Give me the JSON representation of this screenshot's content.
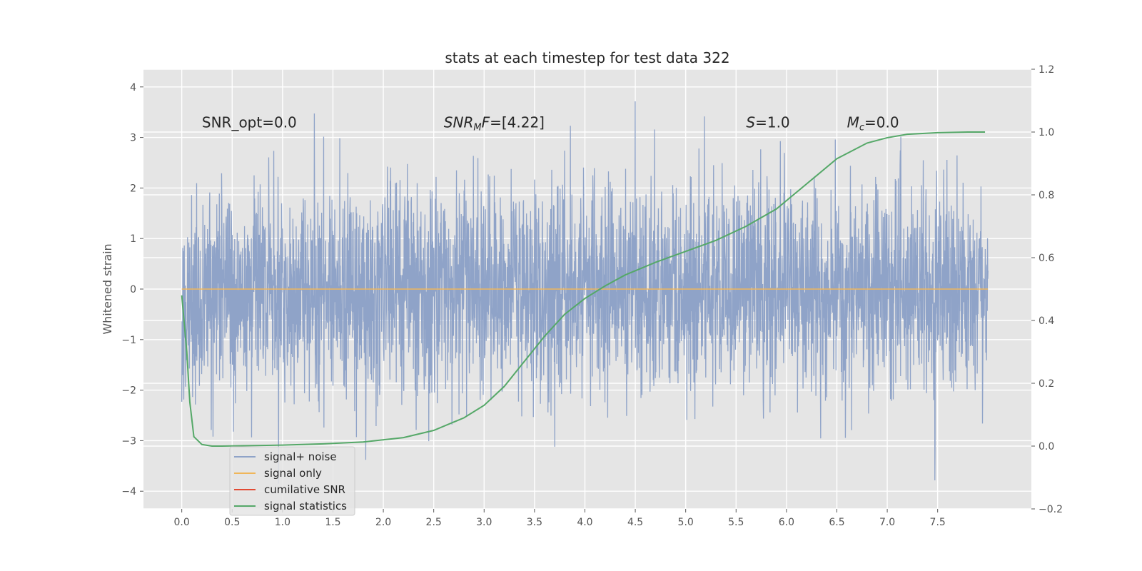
{
  "chart_data": {
    "type": "line",
    "title": "stats at each timestep for test data 322",
    "xlabel": "",
    "ylabel": "Whitened strain",
    "y2label": "",
    "xlim": [
      -0.38,
      8.43
    ],
    "ylim": [
      -4.35,
      4.35
    ],
    "y2lim": [
      -0.2,
      1.2
    ],
    "x_ticks": [
      0.0,
      0.5,
      1.0,
      1.5,
      2.0,
      2.5,
      3.0,
      3.5,
      4.0,
      4.5,
      5.0,
      5.5,
      6.0,
      6.5,
      7.0,
      7.5
    ],
    "x_tick_labels": [
      "0.0",
      "0.5",
      "1.0",
      "1.5",
      "2.0",
      "2.5",
      "3.0",
      "3.5",
      "4.0",
      "4.5",
      "5.0",
      "5.5",
      "6.0",
      "6.5",
      "7.0",
      "7.5"
    ],
    "y_ticks": [
      -4,
      -3,
      -2,
      -1,
      0,
      1,
      2,
      3,
      4
    ],
    "y_tick_labels": [
      "−4",
      "−3",
      "−2",
      "−1",
      "0",
      "1",
      "2",
      "3",
      "4"
    ],
    "y2_ticks": [
      -0.2,
      0.0,
      0.2,
      0.4,
      0.6,
      0.8,
      1.0,
      1.2
    ],
    "y2_tick_labels": [
      "−0.2",
      "0.0",
      "0.2",
      "0.4",
      "0.6",
      "0.8",
      "1.0",
      "1.2"
    ],
    "grid": true,
    "legend_position": "lower-left",
    "series": [
      {
        "name": "signal+ noise",
        "axis": "left",
        "color": "#8fa3c8",
        "description_stats": {
          "x_start": 0.0,
          "x_end": 8.0,
          "approx_min": -3.85,
          "approx_max": 4.0
        }
      },
      {
        "name": "signal only",
        "axis": "left",
        "color": "#f0b65a",
        "x": [
          0.0,
          8.0
        ],
        "y": [
          0.0,
          0.0
        ]
      },
      {
        "name": "cumilative SNR",
        "axis": "left",
        "color": "#e24a33",
        "x": [],
        "y": []
      },
      {
        "name": "signal statistics",
        "axis": "right",
        "color": "#55a868",
        "x": [
          0.0,
          0.05,
          0.08,
          0.12,
          0.2,
          0.3,
          0.4,
          0.6,
          1.0,
          1.4,
          1.8,
          2.2,
          2.5,
          2.8,
          3.0,
          3.2,
          3.4,
          3.6,
          3.8,
          4.0,
          4.2,
          4.4,
          4.7,
          5.0,
          5.3,
          5.6,
          5.9,
          6.2,
          6.5,
          6.8,
          7.0,
          7.2,
          7.5,
          7.8,
          7.97
        ],
        "y": [
          0.48,
          0.3,
          0.14,
          0.03,
          0.005,
          0.0,
          0.0,
          0.001,
          0.003,
          0.007,
          0.013,
          0.027,
          0.05,
          0.09,
          0.13,
          0.19,
          0.27,
          0.35,
          0.42,
          0.47,
          0.51,
          0.545,
          0.585,
          0.62,
          0.655,
          0.7,
          0.755,
          0.835,
          0.915,
          0.965,
          0.982,
          0.993,
          0.998,
          1.0,
          1.0
        ]
      }
    ],
    "annotations": [
      {
        "text": "SNR_opt=0.0",
        "x": 0.2,
        "y": 3.2
      },
      {
        "text": "SNR",
        "sub": "M",
        "tail": "F=[4.22]",
        "x": 2.6,
        "y": 3.2
      },
      {
        "text": "S=1.0",
        "x": 5.6,
        "y": 3.2
      },
      {
        "text": "M",
        "sub": "c",
        "tail": "=0.0",
        "x": 6.6,
        "y": 3.2
      }
    ]
  }
}
